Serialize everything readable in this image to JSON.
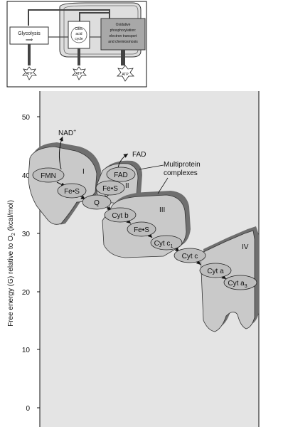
{
  "overview": {
    "glycolysis": "Glycolysis",
    "citric_line1": "Citric",
    "citric_line2": "acid",
    "citric_line3": "cycle",
    "oxphos_line1": "Oxidative",
    "oxphos_line2": "phosphorylation:",
    "oxphos_line3": "electron transport",
    "oxphos_line4": "and chemiosmosis",
    "atp": "ATP"
  },
  "axis": {
    "ylabel_main": "Free energy (G) relative to O",
    "ylabel_sub": "2",
    "ylabel_unit": " (kcal/mol)",
    "ticks": [
      "50",
      "40",
      "30",
      "20",
      "10",
      "0"
    ]
  },
  "chain": {
    "nad": "NAD",
    "nad_sup": "+",
    "fad_out": "FAD",
    "multiprotein_line1": "Multiprotein",
    "multiprotein_line2": "complexes",
    "complex_I": "I",
    "complex_II": "II",
    "complex_III": "III",
    "complex_IV": "IV",
    "fmn": "FMN",
    "fes_1": "Fe•S",
    "fad_in": "FAD",
    "fes_2": "Fe•S",
    "q": "Q",
    "cyt_b": "Cyt b",
    "fes_3": "Fe•S",
    "cyt_c1": "Cyt c",
    "cyt_c1_sub": "1",
    "cyt_c": "Cyt c",
    "cyt_a": "Cyt a",
    "cyt_a3": "Cyt a",
    "cyt_a3_sub": "3"
  }
}
